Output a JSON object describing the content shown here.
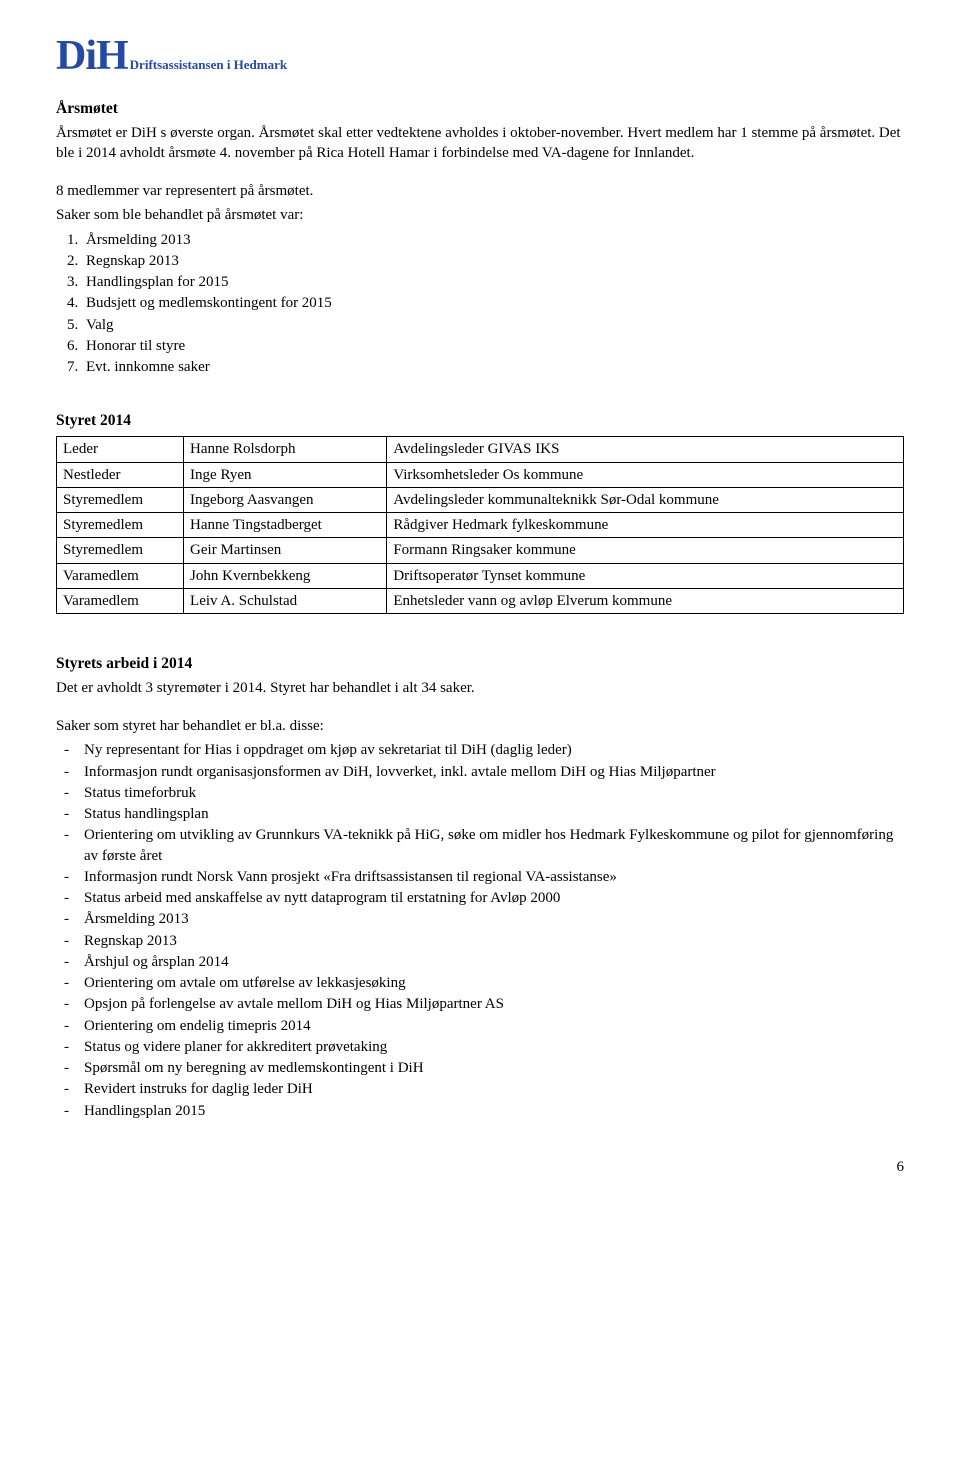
{
  "logo": {
    "main": "DiH",
    "sub": "Driftsassistansen i Hedmark"
  },
  "s1": {
    "title": "Årsmøtet",
    "p1": "Årsmøtet er DiH s øverste organ. Årsmøtet skal etter vedtektene avholdes i oktober-november. Hvert medlem har 1 stemme på årsmøtet. Det ble i 2014 avholdt årsmøte 4. november på Rica Hotell Hamar i forbindelse med VA-dagene for Innlandet.",
    "p2": "8 medlemmer var representert på årsmøtet.",
    "p3": "Saker som ble behandlet på årsmøtet var:",
    "items": [
      "Årsmelding 2013",
      "Regnskap 2013",
      "Handlingsplan for 2015",
      "Budsjett og medlemskontingent for 2015",
      "Valg",
      "Honorar til styre",
      "Evt. innkomne saker"
    ]
  },
  "s2": {
    "title": "Styret 2014",
    "rows": [
      {
        "role": "Leder",
        "name": "Hanne Rolsdorph",
        "pos": "Avdelingsleder GIVAS IKS"
      },
      {
        "role": "Nestleder",
        "name": "Inge Ryen",
        "pos": "Virksomhetsleder Os kommune"
      },
      {
        "role": "Styremedlem",
        "name": "Ingeborg Aasvangen",
        "pos": "Avdelingsleder kommunalteknikk Sør-Odal kommune"
      },
      {
        "role": "Styremedlem",
        "name": "Hanne Tingstadberget",
        "pos": "Rådgiver Hedmark fylkeskommune"
      },
      {
        "role": "Styremedlem",
        "name": "Geir Martinsen",
        "pos": "Formann Ringsaker kommune"
      },
      {
        "role": "Varamedlem",
        "name": "John Kvernbekkeng",
        "pos": "Driftsoperatør Tynset kommune"
      },
      {
        "role": "Varamedlem",
        "name": "Leiv A. Schulstad",
        "pos": "Enhetsleder vann og avløp Elverum kommune"
      }
    ]
  },
  "s3": {
    "title": "Styrets arbeid i 2014",
    "p1": "Det er avholdt 3 styremøter i 2014.  Styret har behandlet i alt 34 saker.",
    "p2": "Saker som styret har behandlet er bl.a. disse:",
    "items": [
      "Ny representant for Hias i oppdraget om kjøp av sekretariat til DiH (daglig leder)",
      "Informasjon rundt organisasjonsformen av DiH, lovverket, inkl. avtale mellom DiH og Hias Miljøpartner",
      "Status timeforbruk",
      "Status handlingsplan",
      "Orientering om utvikling av Grunnkurs VA-teknikk på HiG, søke om midler hos Hedmark Fylkeskommune og pilot for gjennomføring av første året",
      "Informasjon rundt Norsk Vann prosjekt «Fra driftsassistansen til regional VA-assistanse»",
      "Status arbeid med anskaffelse av nytt dataprogram til erstatning for Avløp 2000",
      "Årsmelding 2013",
      "Regnskap 2013",
      "Årshjul og årsplan 2014",
      "Orientering om avtale om utførelse av lekkasjesøking",
      "Opsjon på forlengelse av avtale mellom DiH og Hias Miljøpartner AS",
      "Orientering om endelig timepris 2014",
      "Status og videre planer for akkreditert prøvetaking",
      "Spørsmål om ny beregning av medlemskontingent i DiH",
      "Revidert instruks for daglig leder DiH",
      "Handlingsplan 2015"
    ]
  },
  "page_number": "6"
}
